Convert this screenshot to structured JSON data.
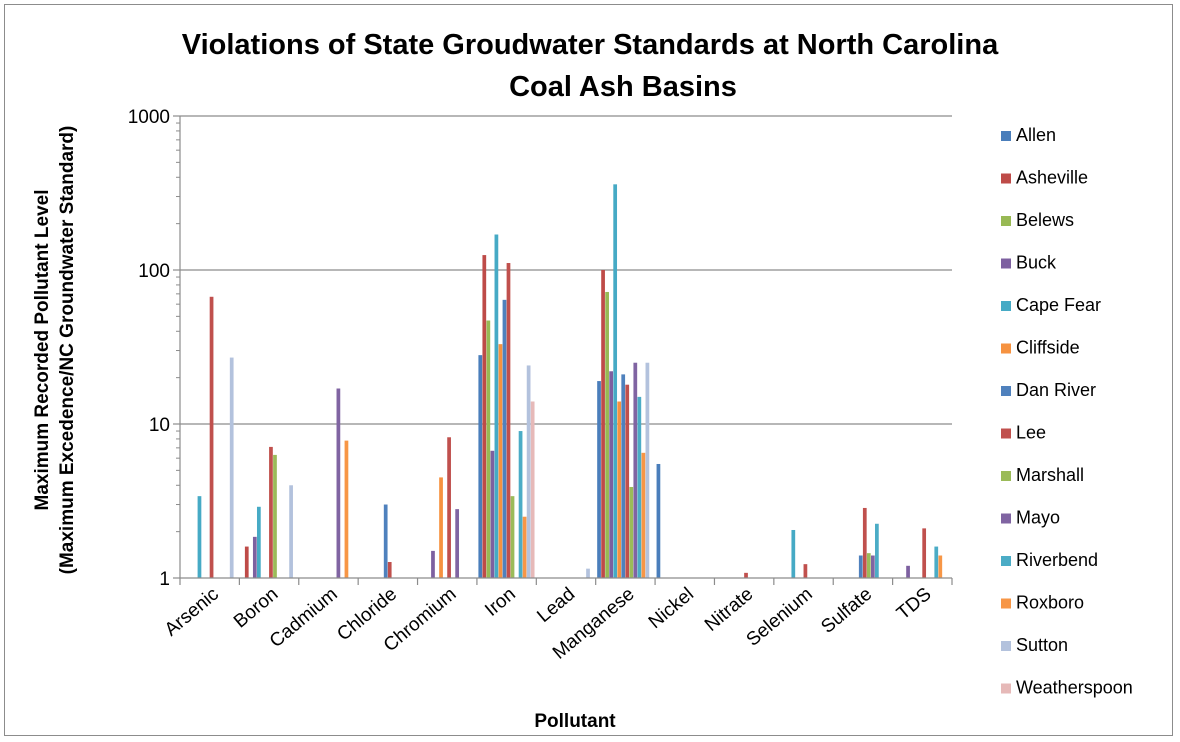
{
  "chart_data": {
    "type": "bar",
    "title": "Violations of State Groudwater Standards at North Carolina Coal Ash Basins",
    "title_lines": [
      "Violations of State Groudwater Standards at North Carolina",
      "Coal Ash Basins"
    ],
    "xlabel": "Pollutant",
    "ylabel": "Maximum Recorded Pollutant Level (Maximum Excedence/NC Groundwater Standard)",
    "ylabel_lines": [
      "Maximum Recorded Pollutant Level",
      "(Maximum Excedence/NC Groundwater Standard)"
    ],
    "yscale": "log",
    "ylim": [
      1,
      1000
    ],
    "yticks": [
      "1",
      "10",
      "100",
      "1000"
    ],
    "grid": true,
    "legend_position": "right",
    "categories": [
      "Arsenic",
      "Boron",
      "Cadmium",
      "Chloride",
      "Chromium",
      "Iron",
      "Lead",
      "Manganese",
      "Nickel",
      "Nitrate",
      "Selenium",
      "Sulfate",
      "TDS"
    ],
    "series": [
      {
        "name": "Allen",
        "color": "#4a7ebb",
        "values": [
          null,
          null,
          null,
          null,
          null,
          28,
          null,
          19,
          5.5,
          null,
          null,
          null,
          null
        ]
      },
      {
        "name": "Asheville",
        "color": "#be4b48",
        "values": [
          null,
          1.6,
          null,
          null,
          null,
          125,
          null,
          100,
          null,
          null,
          null,
          null,
          null
        ]
      },
      {
        "name": "Belews",
        "color": "#98b954",
        "values": [
          null,
          null,
          null,
          null,
          null,
          47,
          null,
          72,
          null,
          null,
          null,
          null,
          null
        ]
      },
      {
        "name": "Buck",
        "color": "#7d60a0",
        "values": [
          null,
          1.85,
          null,
          null,
          1.5,
          6.7,
          null,
          22,
          null,
          null,
          null,
          null,
          1.2
        ]
      },
      {
        "name": "Cape Fear",
        "color": "#46aac5",
        "values": [
          3.4,
          2.9,
          null,
          null,
          null,
          170,
          null,
          360,
          null,
          null,
          2.05,
          null,
          null
        ]
      },
      {
        "name": "Cliffside",
        "color": "#f69240",
        "values": [
          null,
          null,
          null,
          null,
          4.5,
          33,
          null,
          14,
          null,
          null,
          null,
          null,
          null
        ]
      },
      {
        "name": "Dan River",
        "color": "#4f81bd",
        "values": [
          null,
          null,
          null,
          3.0,
          null,
          64,
          null,
          21,
          null,
          null,
          null,
          1.4,
          null
        ]
      },
      {
        "name": "Lee",
        "color": "#c0504d",
        "values": [
          67,
          7.1,
          null,
          1.27,
          8.2,
          111,
          null,
          18,
          null,
          1.08,
          1.23,
          2.85,
          2.1
        ]
      },
      {
        "name": "Marshall",
        "color": "#9bbb59",
        "values": [
          null,
          6.3,
          null,
          null,
          null,
          3.4,
          null,
          3.9,
          null,
          null,
          null,
          1.45,
          null
        ]
      },
      {
        "name": "Mayo",
        "color": "#8064a2",
        "values": [
          null,
          null,
          17,
          null,
          2.8,
          null,
          null,
          25,
          null,
          null,
          null,
          1.4,
          null
        ]
      },
      {
        "name": "Riverbend",
        "color": "#4bacc6",
        "values": [
          null,
          null,
          null,
          null,
          null,
          9.0,
          null,
          15,
          null,
          null,
          null,
          2.25,
          1.6
        ]
      },
      {
        "name": "Roxboro",
        "color": "#f79646",
        "values": [
          null,
          null,
          7.8,
          null,
          null,
          2.5,
          null,
          6.5,
          null,
          null,
          null,
          null,
          1.4
        ]
      },
      {
        "name": "Sutton",
        "color": "#b3c2dd",
        "values": [
          27,
          4.0,
          null,
          null,
          null,
          24,
          1.15,
          25,
          null,
          null,
          null,
          null,
          null
        ]
      },
      {
        "name": "Weatherspoon",
        "color": "#e6b9b8",
        "values": [
          null,
          null,
          null,
          null,
          null,
          14,
          null,
          null,
          null,
          null,
          null,
          null,
          null
        ]
      }
    ]
  }
}
